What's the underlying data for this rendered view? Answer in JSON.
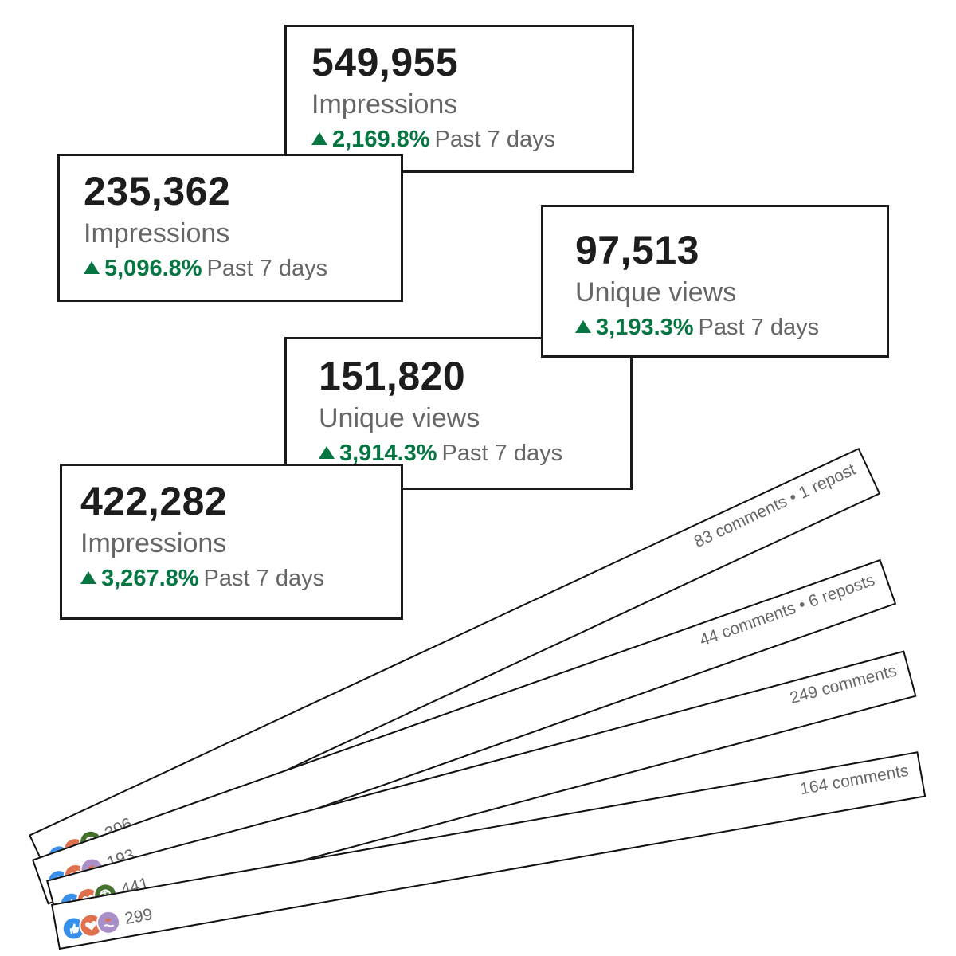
{
  "metric_cards": [
    {
      "value": "549,955",
      "label": "Impressions",
      "pct": "2,169.8%",
      "period": "Past 7 days"
    },
    {
      "value": "235,362",
      "label": "Impressions",
      "pct": "5,096.8%",
      "period": "Past 7 days"
    },
    {
      "value": "97,513",
      "label": "Unique views",
      "pct": "3,193.3%",
      "period": "Past 7 days"
    },
    {
      "value": "151,820",
      "label": "Unique views",
      "pct": "3,914.3%",
      "period": "Past 7 days"
    },
    {
      "value": "422,282",
      "label": "Impressions",
      "pct": "3,267.8%",
      "period": "Past 7 days"
    }
  ],
  "post_strips": [
    {
      "reaction_count": "306",
      "meta": "83 comments • 1 repost",
      "reactions": [
        "like-icon",
        "love-icon",
        "insightful-icon"
      ]
    },
    {
      "reaction_count": "193",
      "meta": "44 comments • 6 reposts",
      "reactions": [
        "like-icon",
        "love-icon",
        "support-icon"
      ]
    },
    {
      "reaction_count": "441",
      "meta": "249 comments",
      "reactions": [
        "like-icon",
        "love-icon",
        "insightful-icon"
      ]
    },
    {
      "reaction_count": "299",
      "meta": "164 comments",
      "reactions": [
        "like-icon",
        "love-icon",
        "support-icon"
      ]
    }
  ],
  "colors": {
    "trend_green": "#057642",
    "like_blue": "#378fe9",
    "love_orange": "#df704d",
    "insightful_green": "#44712e",
    "support_purple": "#a88fc7"
  }
}
